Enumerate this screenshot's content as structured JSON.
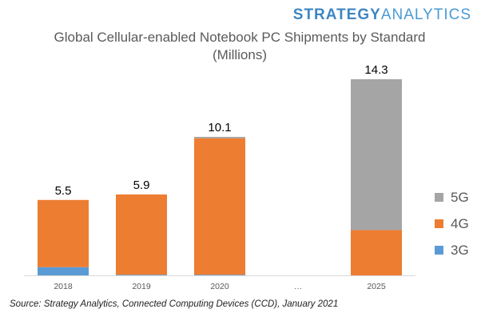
{
  "brand": {
    "name_part1": "STRATEGY",
    "name_part2": "ANALYTICS"
  },
  "chart_data": {
    "type": "bar",
    "stacked": true,
    "title": "Global Cellular-enabled Notebook PC Shipments by Standard",
    "subtitle": "(Millions)",
    "categories": [
      "2018",
      "2019",
      "2020",
      "…",
      "2025"
    ],
    "series": [
      {
        "name": "3G",
        "color": "#5b9bd5",
        "values": [
          0.6,
          0.05,
          0.05,
          0,
          0
        ]
      },
      {
        "name": "4G",
        "color": "#ed7d31",
        "values": [
          4.9,
          5.85,
          9.95,
          0,
          3.3
        ]
      },
      {
        "name": "5G",
        "color": "#a5a5a5",
        "values": [
          0,
          0,
          0.1,
          0,
          11.0
        ]
      }
    ],
    "totals": [
      "5.5",
      "5.9",
      "10.1",
      "",
      "14.3"
    ],
    "ylim": [
      0,
      14.3
    ],
    "legend_position": "right",
    "legend_order": [
      "5G",
      "4G",
      "3G"
    ]
  },
  "source": "Source: Strategy Analytics, Connected Computing Devices (CCD), January 2021"
}
